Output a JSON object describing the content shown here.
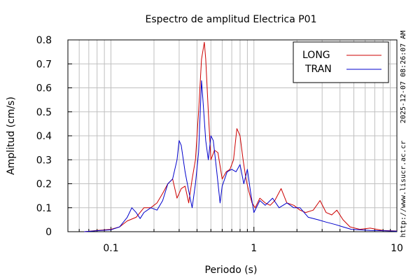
{
  "chart_data": {
    "type": "line",
    "title": "Espectro de amplitud Electrica P01",
    "xlabel": "Periodo (s)",
    "ylabel": "Amplitud (cm/s)",
    "xscale": "log",
    "xlim": [
      0.05,
      10
    ],
    "ylim": [
      0,
      0.8
    ],
    "grid": true,
    "legend_position": "top-right",
    "x_ticks": [
      {
        "value": 0.1,
        "label": "0.1"
      },
      {
        "value": 1,
        "label": "1"
      },
      {
        "value": 10,
        "label": "10"
      }
    ],
    "y_ticks": [
      {
        "value": 0,
        "label": "0"
      },
      {
        "value": 0.1,
        "label": "0.1"
      },
      {
        "value": 0.2,
        "label": "0.2"
      },
      {
        "value": 0.3,
        "label": "0.3"
      },
      {
        "value": 0.4,
        "label": "0.4"
      },
      {
        "value": 0.5,
        "label": "0.5"
      },
      {
        "value": 0.6,
        "label": "0.6"
      },
      {
        "value": 0.7,
        "label": "0.7"
      },
      {
        "value": 0.8,
        "label": "0.8"
      }
    ],
    "series": [
      {
        "name": "LONG",
        "color": "#cc0000",
        "x": [
          0.065,
          0.08,
          0.1,
          0.115,
          0.13,
          0.15,
          0.17,
          0.19,
          0.21,
          0.23,
          0.25,
          0.27,
          0.29,
          0.31,
          0.33,
          0.35,
          0.37,
          0.39,
          0.41,
          0.43,
          0.45,
          0.46,
          0.48,
          0.5,
          0.53,
          0.56,
          0.6,
          0.64,
          0.68,
          0.72,
          0.76,
          0.8,
          0.84,
          0.88,
          0.92,
          0.97,
          1.02,
          1.1,
          1.2,
          1.3,
          1.4,
          1.55,
          1.7,
          1.9,
          2.1,
          2.3,
          2.6,
          2.9,
          3.2,
          3.5,
          3.8,
          4.2,
          4.7,
          5.5,
          6.5,
          8,
          10
        ],
        "y": [
          0.0,
          0.005,
          0.01,
          0.02,
          0.045,
          0.06,
          0.1,
          0.1,
          0.12,
          0.16,
          0.2,
          0.22,
          0.14,
          0.18,
          0.19,
          0.12,
          0.22,
          0.3,
          0.5,
          0.72,
          0.79,
          0.72,
          0.5,
          0.3,
          0.34,
          0.33,
          0.22,
          0.25,
          0.26,
          0.3,
          0.43,
          0.4,
          0.3,
          0.22,
          0.17,
          0.12,
          0.1,
          0.14,
          0.12,
          0.11,
          0.13,
          0.18,
          0.12,
          0.11,
          0.09,
          0.08,
          0.09,
          0.13,
          0.08,
          0.07,
          0.09,
          0.05,
          0.02,
          0.01,
          0.015,
          0.005,
          0.003
        ]
      },
      {
        "name": "TRAN",
        "color": "#0000cc",
        "x": [
          0.065,
          0.08,
          0.1,
          0.115,
          0.13,
          0.14,
          0.15,
          0.16,
          0.17,
          0.19,
          0.21,
          0.23,
          0.25,
          0.27,
          0.29,
          0.3,
          0.31,
          0.33,
          0.35,
          0.37,
          0.39,
          0.41,
          0.43,
          0.44,
          0.46,
          0.48,
          0.5,
          0.52,
          0.55,
          0.58,
          0.6,
          0.65,
          0.7,
          0.75,
          0.8,
          0.85,
          0.9,
          0.95,
          1.0,
          1.1,
          1.2,
          1.35,
          1.5,
          1.7,
          1.9,
          2.1,
          2.4,
          2.8,
          3.2,
          3.7,
          4.2,
          4.8,
          5.5,
          6.5,
          8,
          10
        ],
        "y": [
          0.0,
          0.004,
          0.008,
          0.02,
          0.06,
          0.1,
          0.08,
          0.055,
          0.08,
          0.1,
          0.09,
          0.13,
          0.2,
          0.22,
          0.3,
          0.38,
          0.36,
          0.25,
          0.17,
          0.1,
          0.2,
          0.33,
          0.63,
          0.55,
          0.38,
          0.3,
          0.4,
          0.38,
          0.25,
          0.12,
          0.19,
          0.25,
          0.26,
          0.25,
          0.28,
          0.2,
          0.26,
          0.16,
          0.08,
          0.13,
          0.11,
          0.14,
          0.1,
          0.12,
          0.1,
          0.1,
          0.06,
          0.05,
          0.04,
          0.03,
          0.02,
          0.01,
          0.008,
          0.005,
          0.004,
          0.002
        ]
      }
    ]
  },
  "side_text": {
    "timestamp": "2025-12-07 08:26:07 AM",
    "url": "http://www.lisucr.ac.cr"
  }
}
